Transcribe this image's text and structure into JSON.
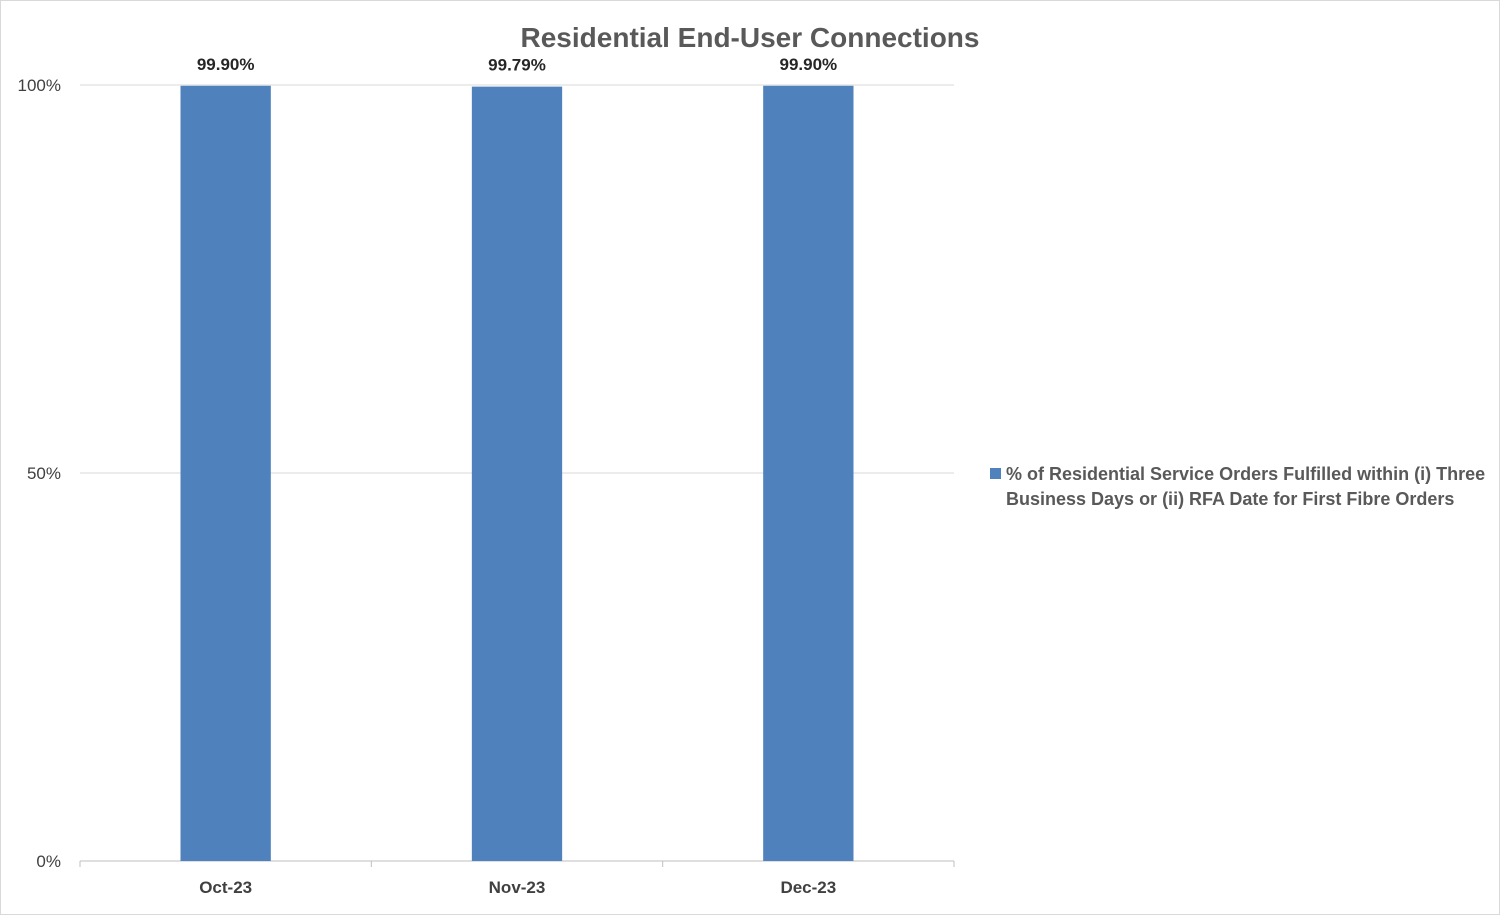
{
  "chart_data": {
    "type": "bar",
    "title": "Residential End-User Connections",
    "categories": [
      "Oct-23",
      "Nov-23",
      "Dec-23"
    ],
    "series": [
      {
        "name": "% of Residential Service Orders Fulfilled within (i) Three Business Days or (ii) RFA Date for First Fibre Orders",
        "values": [
          99.9,
          99.79,
          99.9
        ],
        "data_labels": [
          "99.90%",
          "99.79%",
          "99.90%"
        ],
        "color": "#4f81bd"
      }
    ],
    "ylim": [
      0,
      100
    ],
    "yticks": [
      0,
      50,
      100
    ],
    "ytick_labels": [
      "0%",
      "50%",
      "100%"
    ],
    "grid": true,
    "legend_position": "right"
  }
}
